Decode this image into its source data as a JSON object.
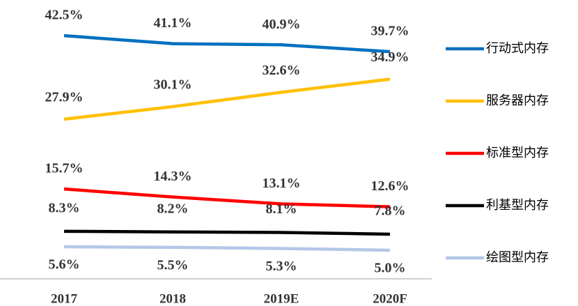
{
  "chart_data": {
    "type": "line",
    "categories": [
      "2017",
      "2018",
      "2019E",
      "2020F"
    ],
    "ylim": [
      0,
      48
    ],
    "series": [
      {
        "name": "行动式内存",
        "color": "#0070c0",
        "values": [
          42.5,
          41.1,
          40.9,
          39.7
        ],
        "value_labels": [
          "42.5%",
          "41.1%",
          "40.9%",
          "39.7%"
        ]
      },
      {
        "name": "服务器内存",
        "color": "#ffc000",
        "values": [
          27.9,
          30.1,
          32.6,
          34.9
        ],
        "value_labels": [
          "27.9%",
          "30.1%",
          "32.6%",
          "34.9%"
        ]
      },
      {
        "name": "标准型内存",
        "color": "#ff0000",
        "values": [
          15.7,
          14.3,
          13.1,
          12.6
        ],
        "value_labels": [
          "15.7%",
          "14.3%",
          "13.1%",
          "12.6%"
        ]
      },
      {
        "name": "利基型内存",
        "color": "#000000",
        "values": [
          8.3,
          8.2,
          8.1,
          7.8
        ],
        "value_labels": [
          "8.3%",
          "8.2%",
          "8.1%",
          "7.8%"
        ]
      },
      {
        "name": "绘图型内存",
        "color": "#b4c7e7",
        "values": [
          5.6,
          5.5,
          5.3,
          5.0
        ],
        "value_labels": [
          "5.6%",
          "5.5%",
          "5.3%",
          "5.0%"
        ]
      }
    ],
    "legend": "right"
  }
}
